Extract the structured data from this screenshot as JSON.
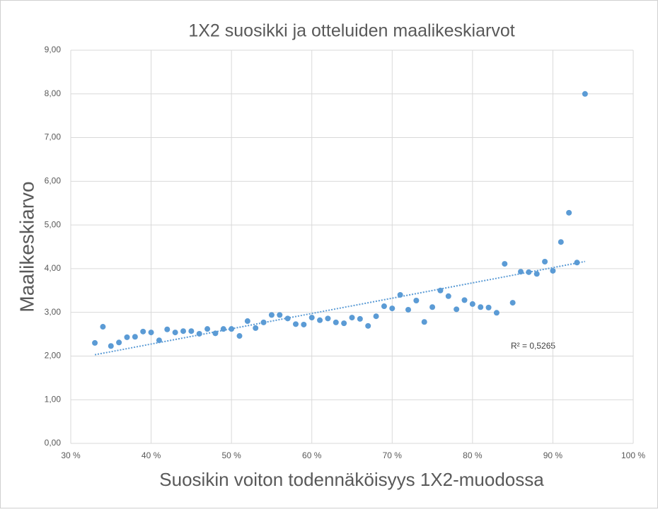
{
  "chart_data": {
    "type": "scatter",
    "title": "1X2 suosikki ja otteluiden maalikeskiarvot",
    "x_label": "Suosikin voiton todennäköisyys 1X2-muodossa",
    "y_label": "Maalikeskiarvo",
    "annotation": "R² = 0,5265",
    "trendline": "linear",
    "grid": true,
    "color": "#5b9bd5",
    "x": [
      33,
      34,
      35,
      36,
      37,
      38,
      39,
      40,
      41,
      42,
      43,
      44,
      45,
      46,
      47,
      48,
      49,
      50,
      51,
      52,
      53,
      54,
      55,
      56,
      57,
      58,
      59,
      60,
      61,
      62,
      63,
      64,
      65,
      66,
      67,
      68,
      69,
      70,
      71,
      72,
      73,
      74,
      75,
      76,
      77,
      78,
      79,
      80,
      81,
      82,
      83,
      84,
      85,
      86,
      87,
      88,
      89,
      90,
      91,
      92,
      93,
      94
    ],
    "values": [
      2.3,
      2.67,
      2.23,
      2.31,
      2.43,
      2.44,
      2.56,
      2.54,
      2.36,
      2.61,
      2.54,
      2.57,
      2.57,
      2.51,
      2.62,
      2.52,
      2.62,
      2.62,
      2.46,
      2.8,
      2.64,
      2.77,
      2.94,
      2.94,
      2.86,
      2.73,
      2.72,
      2.88,
      2.82,
      2.86,
      2.77,
      2.75,
      2.88,
      2.85,
      2.69,
      2.91,
      3.14,
      3.09,
      3.4,
      3.06,
      3.27,
      2.78,
      3.12,
      3.5,
      3.37,
      3.07,
      3.28,
      3.19,
      3.12,
      3.11,
      2.99,
      4.11,
      3.22,
      3.93,
      3.92,
      3.88,
      4.16,
      3.95,
      4.61,
      5.28,
      4.14,
      8.0
    ],
    "xlim": [
      30,
      100
    ],
    "xticks": [
      {
        "value": 30,
        "label": "30 %"
      },
      {
        "value": 40,
        "label": "40 %"
      },
      {
        "value": 50,
        "label": "50 %"
      },
      {
        "value": 60,
        "label": "60 %"
      },
      {
        "value": 70,
        "label": "70 %"
      },
      {
        "value": 80,
        "label": "80 %"
      },
      {
        "value": 90,
        "label": "90 %"
      },
      {
        "value": 100,
        "label": "100 %"
      }
    ],
    "ylim": [
      0,
      9
    ],
    "yticks": [
      {
        "value": 0,
        "label": "0,00"
      },
      {
        "value": 1,
        "label": "1,00"
      },
      {
        "value": 2,
        "label": "2,00"
      },
      {
        "value": 3,
        "label": "3,00"
      },
      {
        "value": 4,
        "label": "4,00"
      },
      {
        "value": 5,
        "label": "5,00"
      },
      {
        "value": 6,
        "label": "6,00"
      },
      {
        "value": 7,
        "label": "7,00"
      },
      {
        "value": 8,
        "label": "8,00"
      },
      {
        "value": 9,
        "label": "9,00"
      }
    ]
  }
}
